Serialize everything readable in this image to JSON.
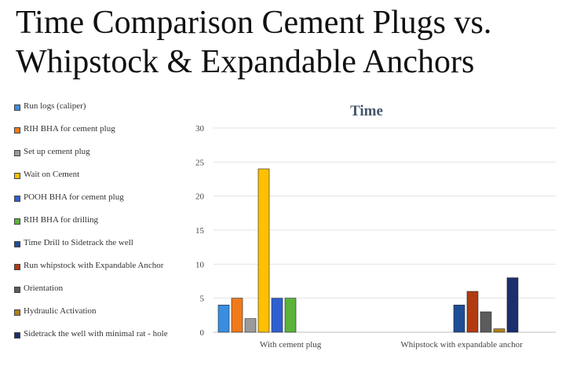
{
  "page": {
    "title_line1": "Time Comparison Cement Plugs vs.",
    "title_line2": "Whipstock & Expandable Anchors"
  },
  "chart_data": {
    "type": "bar",
    "title": "Time",
    "categories": [
      "With cement plug",
      "Whipstock with expandable anchor"
    ],
    "ylim": [
      0,
      30
    ],
    "yticks": [
      0,
      5,
      10,
      15,
      20,
      25,
      30
    ],
    "grid": true,
    "legend_position": "left",
    "series": [
      {
        "name": "Run logs (caliper)",
        "color": "#3a8ee0",
        "values": [
          4,
          null
        ]
      },
      {
        "name": "RIH BHA for cement plug",
        "color": "#f07a1a",
        "values": [
          5,
          null
        ]
      },
      {
        "name": "Set up cement plug",
        "color": "#9a9a9a",
        "values": [
          2,
          null
        ]
      },
      {
        "name": "Wait on Cement",
        "color": "#ffc000",
        "values": [
          24,
          null
        ]
      },
      {
        "name": "POOH BHA for cement plug",
        "color": "#2f5fd0",
        "values": [
          5,
          null
        ]
      },
      {
        "name": "RIH BHA for drilling",
        "color": "#5bb33a",
        "values": [
          5,
          null
        ]
      },
      {
        "name": "Time Drill to Sidetrack the well",
        "color": "#1f4e96",
        "values": [
          null,
          4
        ]
      },
      {
        "name": "Run whipstock with Expandable Anchor",
        "color": "#b23a10",
        "values": [
          null,
          6
        ]
      },
      {
        "name": "Orientation",
        "color": "#5c5c5c",
        "values": [
          null,
          3
        ]
      },
      {
        "name": "Hydraulic Activation",
        "color": "#b08018",
        "values": [
          null,
          0.5
        ]
      },
      {
        "name": "Sidetrack the well with minimal rat - hole",
        "color": "#1b2e6e",
        "values": [
          null,
          8
        ]
      }
    ]
  }
}
